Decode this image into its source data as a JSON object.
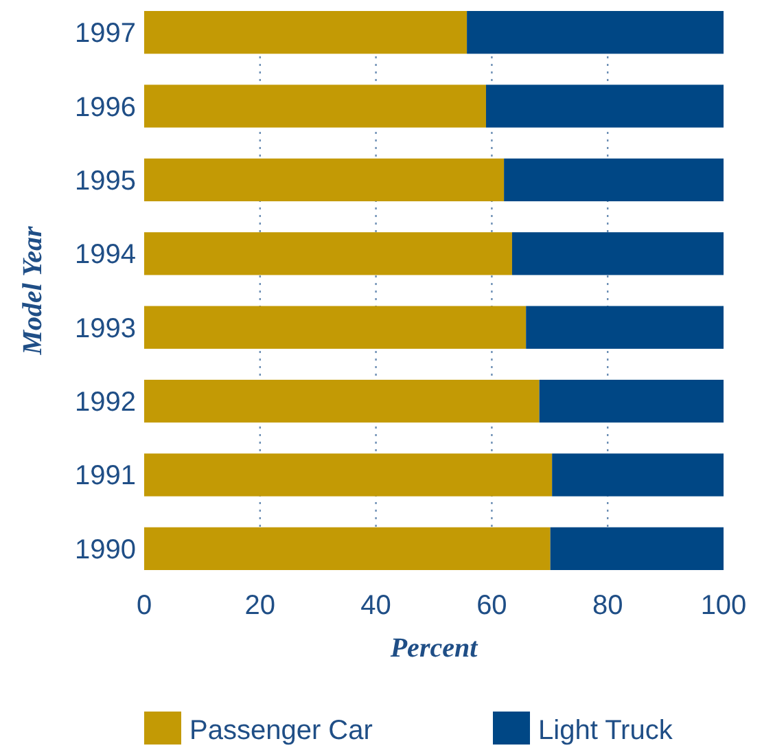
{
  "chart_data": {
    "type": "bar",
    "orientation": "horizontal",
    "stacked": true,
    "categories": [
      "1997",
      "1996",
      "1995",
      "1994",
      "1993",
      "1992",
      "1991",
      "1990"
    ],
    "series": [
      {
        "name": "Passenger Car",
        "color": "#c39a05",
        "values": [
          55.7,
          59.0,
          62.1,
          63.5,
          65.9,
          68.2,
          70.4,
          70.1
        ]
      },
      {
        "name": "Light Truck",
        "color": "#004785",
        "values": [
          44.3,
          41.0,
          37.9,
          36.5,
          34.1,
          31.8,
          29.6,
          29.9
        ]
      }
    ],
    "xlim": [
      0,
      100
    ],
    "xticks": [
      0,
      20,
      40,
      60,
      80,
      100
    ],
    "xlabel": "Percent",
    "ylabel": "Model Year",
    "grid": "x",
    "legend": "bottom"
  }
}
